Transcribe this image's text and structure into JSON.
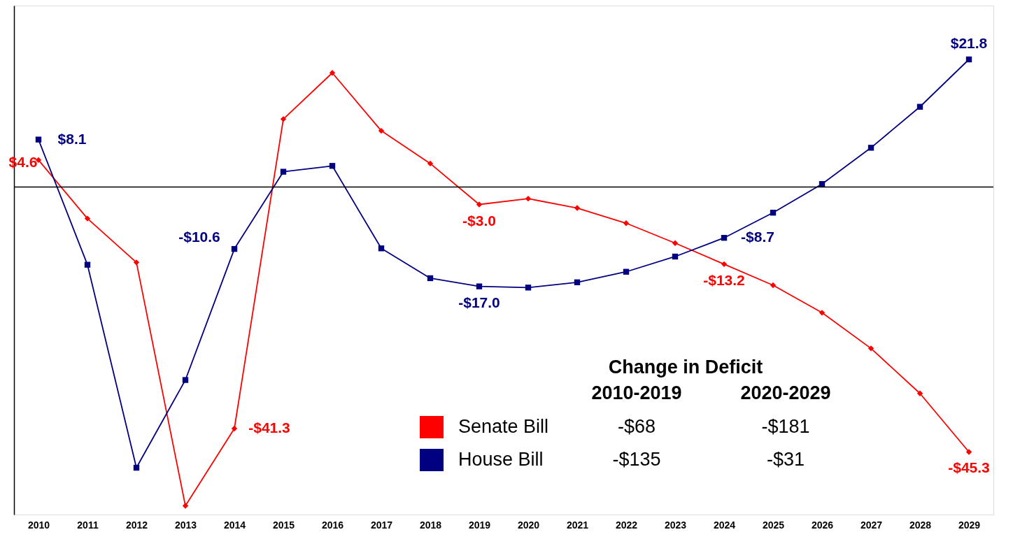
{
  "chart_data": {
    "type": "line",
    "categories": [
      "2010",
      "2011",
      "2012",
      "2013",
      "2014",
      "2015",
      "2016",
      "2017",
      "2018",
      "2019",
      "2020",
      "2021",
      "2022",
      "2023",
      "2024",
      "2025",
      "2026",
      "2027",
      "2028",
      "2029"
    ],
    "series": [
      {
        "name": "Senate Bill",
        "color": "#ff0000",
        "marker": "diamond",
        "values": [
          4.6,
          -5.4,
          -12.9,
          -54.5,
          -41.3,
          11.6,
          19.5,
          9.6,
          4.0,
          -3.0,
          -2.0,
          -3.6,
          -6.2,
          -9.6,
          -13.2,
          -16.8,
          -21.5,
          -27.6,
          -35.3,
          -45.3
        ],
        "value_labels": [
          "$4.6",
          null,
          null,
          null,
          "-$41.3",
          null,
          null,
          null,
          null,
          "-$3.0",
          null,
          null,
          null,
          null,
          "-$13.2",
          null,
          null,
          null,
          null,
          "-$45.3"
        ]
      },
      {
        "name": "House Bill",
        "color": "#000080",
        "marker": "square",
        "values": [
          8.1,
          -13.3,
          -48.0,
          -33.0,
          -10.6,
          2.6,
          3.6,
          -10.5,
          -15.6,
          -17.0,
          -17.2,
          -16.3,
          -14.5,
          -11.9,
          -8.7,
          -4.4,
          0.5,
          6.7,
          13.7,
          21.8
        ],
        "value_labels": [
          "$8.1",
          null,
          null,
          null,
          "-$10.6",
          null,
          null,
          null,
          null,
          "-$17.0",
          null,
          null,
          null,
          null,
          "-$8.7",
          null,
          null,
          null,
          null,
          "$21.8"
        ]
      }
    ],
    "ylim": [
      -56,
      31
    ],
    "tick_labels": "x",
    "grid": false,
    "line_style": "solid",
    "ref_lines": [
      {
        "axis": "y",
        "value": 0,
        "color": "#000000"
      }
    ],
    "legend": "bottom right",
    "legend_title": "Change in Deficit",
    "annotations": [
      "2010-2019",
      "2020-2029",
      "-$68",
      "-$181",
      "-$135",
      "-$31"
    ]
  }
}
